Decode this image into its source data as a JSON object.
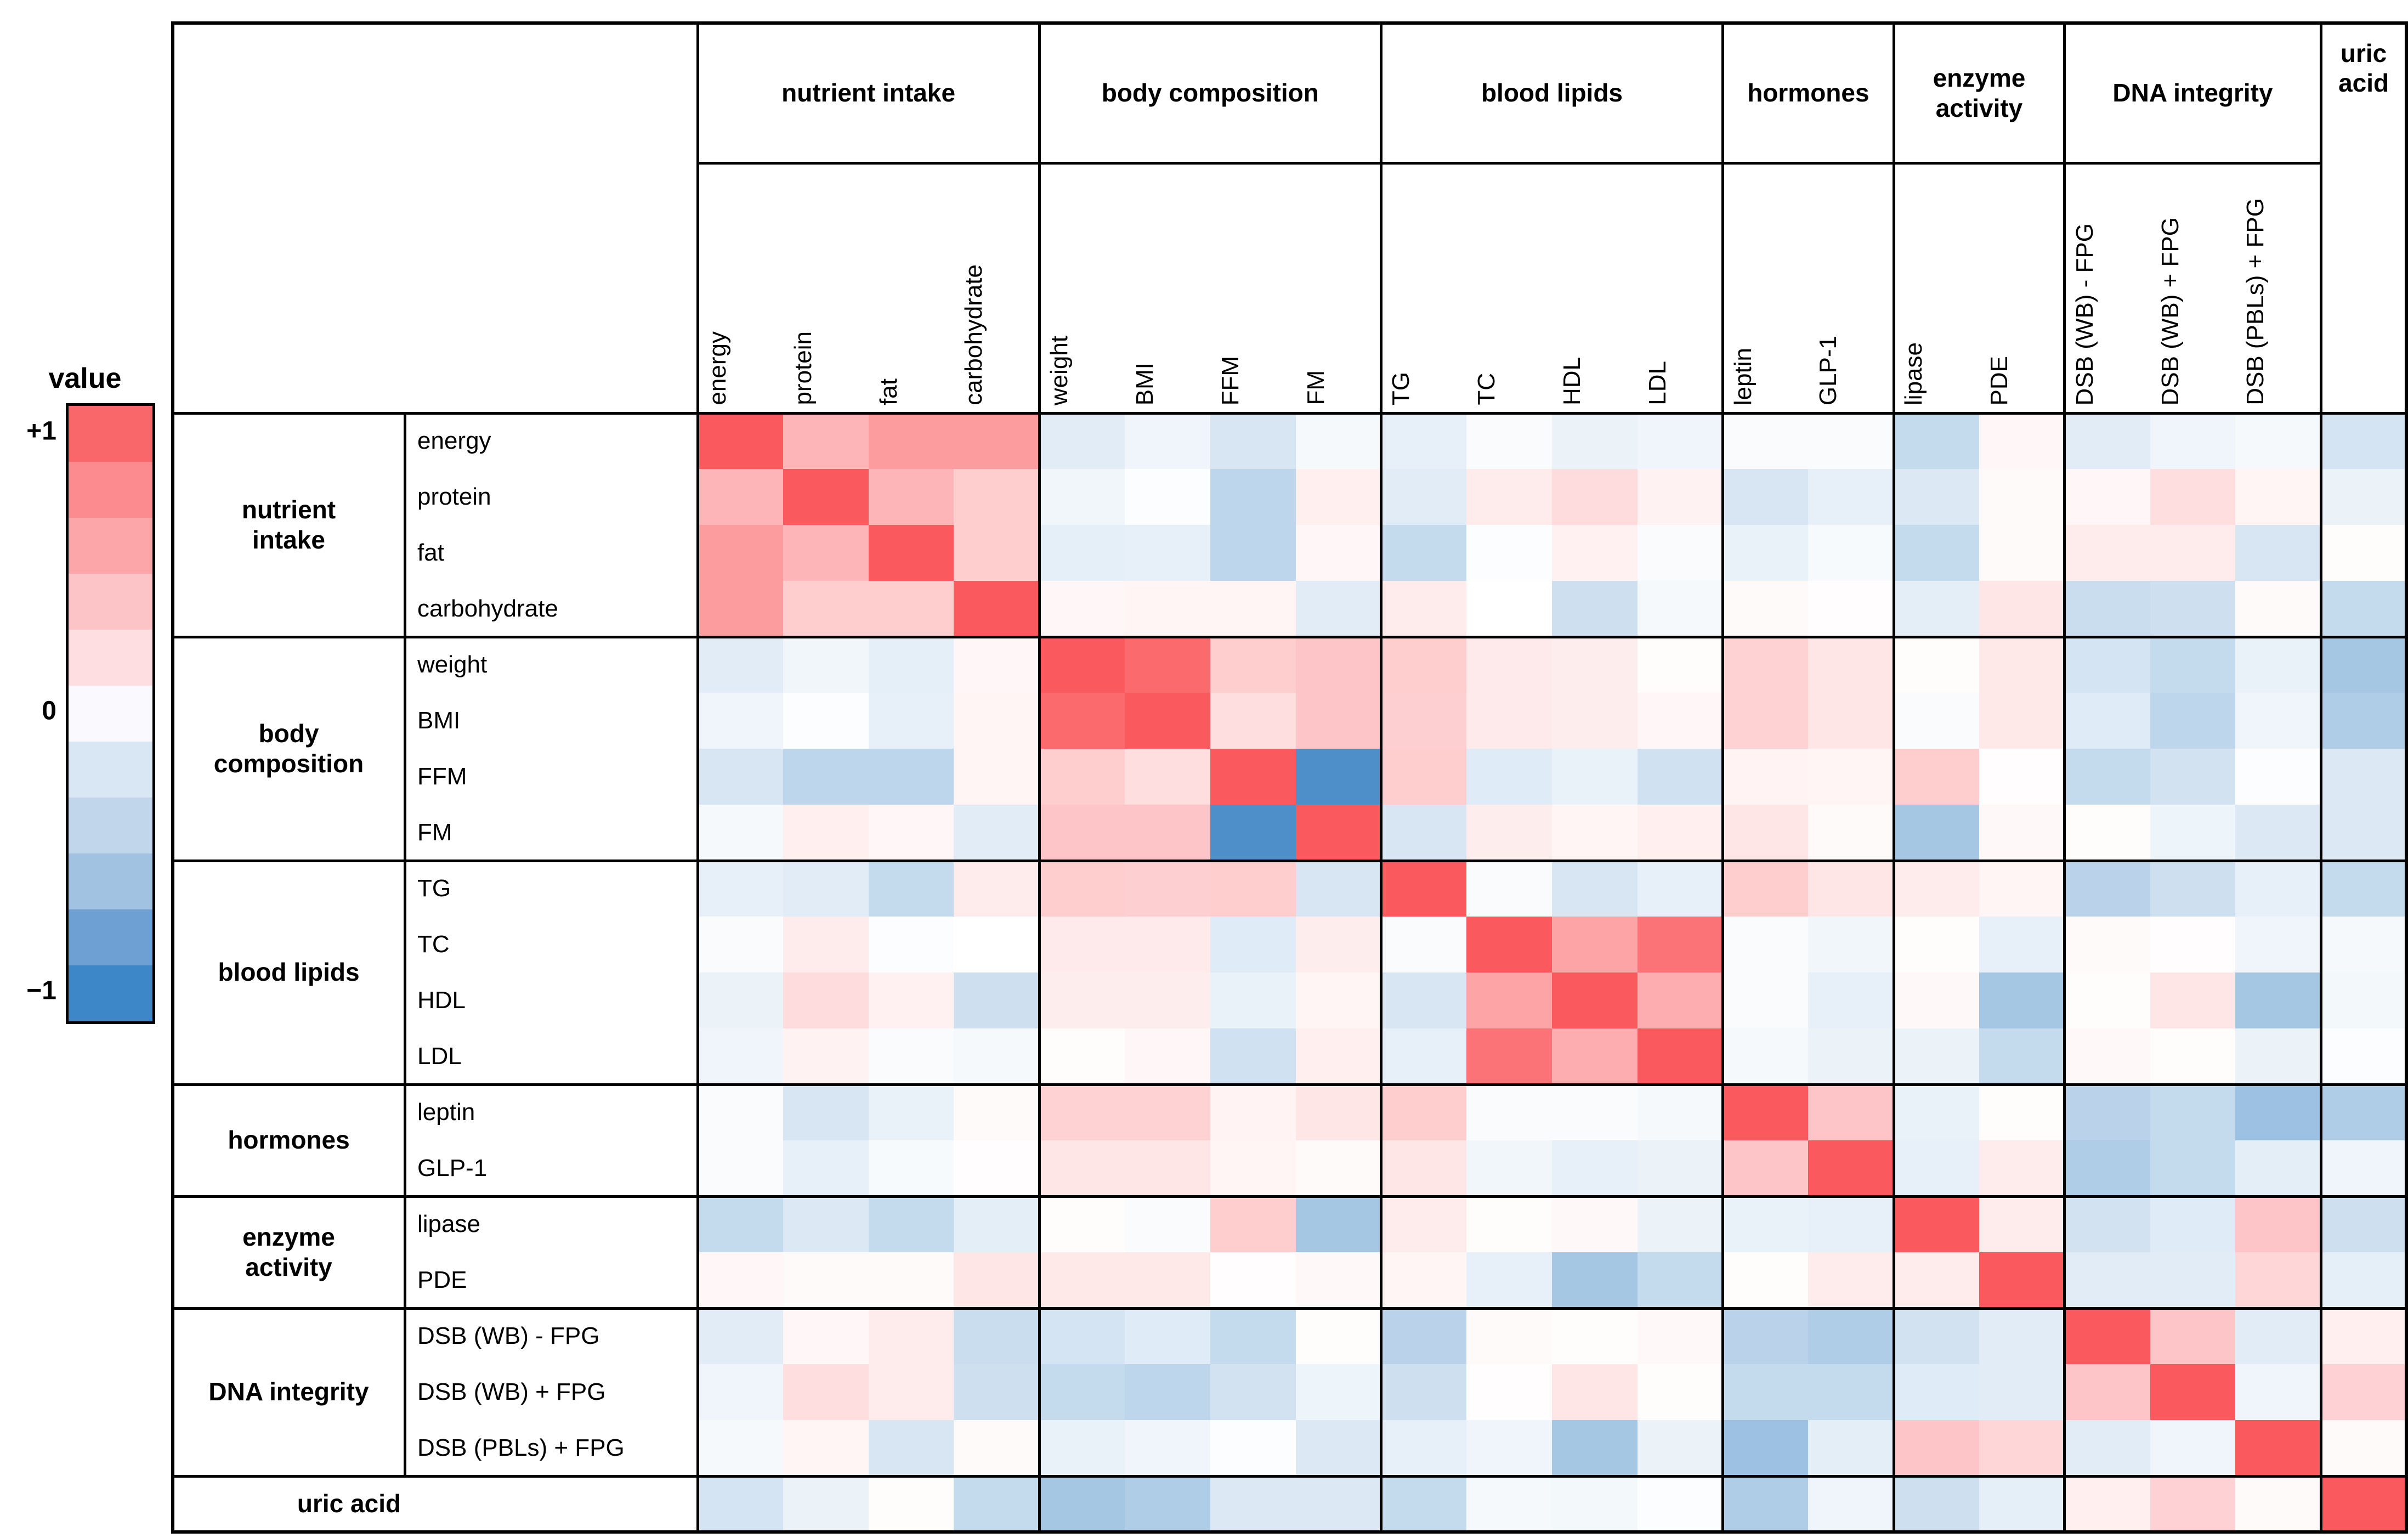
{
  "legend": {
    "title": "value",
    "ticks": [
      "+1",
      "0",
      "−1"
    ],
    "band_colors": [
      "#FA676B",
      "#FB8B8F",
      "#FCA6AA",
      "#FDC4C7",
      "#FEDEE0",
      "#FAFAFE",
      "#D9E6F3",
      "#C2D6EB",
      "#A1C3E1",
      "#6FA0D3",
      "#3D86C8"
    ]
  },
  "colors": {
    "positive_max": "#FA5A5E",
    "negative_max": "#3A82C4",
    "zero": "#FFFFFF",
    "grid": "#000000"
  },
  "chart_data": {
    "type": "heatmap",
    "title": "",
    "value_range": [
      -1,
      1
    ],
    "legend_position": "left",
    "groups": [
      {
        "name": "nutrient intake",
        "col_label": "nutrient intake",
        "row_label": "nutrient\nintake",
        "vars": [
          "energy",
          "protein",
          "fat",
          "carbohydrate"
        ]
      },
      {
        "name": "body composition",
        "col_label": "body composition",
        "row_label": "body\ncomposition",
        "vars": [
          "weight",
          "BMI",
          "FFM",
          "FM"
        ]
      },
      {
        "name": "blood lipids",
        "col_label": "blood lipids",
        "row_label": "blood lipids",
        "vars": [
          "TG",
          "TC",
          "HDL",
          "LDL"
        ]
      },
      {
        "name": "hormones",
        "col_label": "hormones",
        "row_label": "hormones",
        "vars": [
          "leptin",
          "GLP-1"
        ]
      },
      {
        "name": "enzyme activity",
        "col_label": "enzyme\nactivity",
        "row_label": "enzyme\nactivity",
        "vars": [
          "lipase",
          "PDE"
        ]
      },
      {
        "name": "DNA integrity",
        "col_label": "DNA integrity",
        "row_label": "DNA integrity",
        "vars": [
          "DSB (WB) - FPG",
          "DSB (WB) + FPG",
          "DSB (PBLs) + FPG"
        ]
      },
      {
        "name": "uric acid",
        "col_label": "uric\nacid",
        "row_label": "uric acid",
        "vars": [
          "uric acid"
        ]
      }
    ],
    "variables": [
      "energy",
      "protein",
      "fat",
      "carbohydrate",
      "weight",
      "BMI",
      "FFM",
      "FM",
      "TG",
      "TC",
      "HDL",
      "LDL",
      "leptin",
      "GLP-1",
      "lipase",
      "PDE",
      "DSB (WB) - FPG",
      "DSB (WB) + FPG",
      "DSB (PBLs) + FPG",
      "uric acid"
    ],
    "matrix": [
      [
        1.0,
        0.45,
        0.6,
        0.6,
        -0.15,
        -0.08,
        -0.2,
        -0.05,
        -0.12,
        -0.03,
        -0.1,
        -0.08,
        -0.03,
        -0.03,
        -0.3,
        0.05,
        -0.15,
        -0.08,
        -0.05,
        -0.22
      ],
      [
        0.45,
        1.0,
        0.45,
        0.3,
        -0.07,
        -0.02,
        -0.33,
        0.1,
        -0.15,
        0.12,
        0.22,
        0.08,
        -0.2,
        -0.12,
        -0.18,
        0.03,
        0.05,
        0.2,
        0.06,
        -0.1
      ],
      [
        0.6,
        0.45,
        1.0,
        0.3,
        -0.13,
        -0.12,
        -0.33,
        0.05,
        -0.3,
        -0.02,
        0.09,
        -0.03,
        -0.11,
        -0.04,
        -0.3,
        0.03,
        0.12,
        0.12,
        -0.2,
        0.02
      ],
      [
        0.6,
        0.3,
        0.3,
        1.0,
        0.05,
        0.06,
        0.06,
        -0.15,
        0.12,
        0.0,
        -0.25,
        -0.05,
        0.03,
        0.01,
        -0.14,
        0.15,
        -0.27,
        -0.25,
        0.03,
        -0.3
      ],
      [
        -0.15,
        -0.07,
        -0.13,
        0.05,
        1.0,
        0.9,
        0.3,
        0.35,
        0.3,
        0.13,
        0.11,
        0.02,
        0.28,
        0.15,
        0.02,
        0.14,
        -0.22,
        -0.3,
        -0.11,
        -0.45
      ],
      [
        -0.08,
        -0.02,
        -0.12,
        0.06,
        0.9,
        1.0,
        0.2,
        0.35,
        0.29,
        0.13,
        0.11,
        0.05,
        0.28,
        0.15,
        -0.03,
        0.14,
        -0.16,
        -0.33,
        -0.08,
        -0.4
      ],
      [
        -0.2,
        -0.33,
        -0.33,
        0.06,
        0.3,
        0.2,
        1.0,
        -0.9,
        0.3,
        -0.16,
        -0.11,
        -0.24,
        0.07,
        0.06,
        0.3,
        0.01,
        -0.3,
        -0.23,
        -0.02,
        -0.18
      ],
      [
        -0.05,
        0.1,
        0.05,
        -0.15,
        0.35,
        0.35,
        -0.9,
        1.0,
        -0.2,
        0.11,
        0.06,
        0.1,
        0.15,
        0.03,
        -0.45,
        0.04,
        0.02,
        -0.09,
        -0.18,
        -0.18
      ],
      [
        -0.12,
        -0.15,
        -0.3,
        0.12,
        0.3,
        0.29,
        0.3,
        -0.2,
        1.0,
        -0.03,
        -0.2,
        -0.12,
        0.3,
        0.15,
        0.12,
        0.06,
        -0.35,
        -0.25,
        -0.12,
        -0.3
      ],
      [
        -0.03,
        0.12,
        -0.02,
        0.0,
        0.13,
        0.13,
        -0.16,
        0.11,
        -0.03,
        1.0,
        0.55,
        0.85,
        -0.03,
        -0.07,
        0.02,
        -0.12,
        0.03,
        0.01,
        -0.08,
        -0.05
      ],
      [
        -0.1,
        0.22,
        0.09,
        -0.25,
        0.11,
        0.11,
        -0.11,
        0.06,
        -0.2,
        0.55,
        1.0,
        0.5,
        -0.03,
        -0.12,
        0.04,
        -0.45,
        0.02,
        0.15,
        -0.45,
        -0.06
      ],
      [
        -0.08,
        0.08,
        -0.03,
        -0.05,
        0.02,
        0.05,
        -0.24,
        0.1,
        -0.12,
        0.85,
        0.5,
        1.0,
        -0.05,
        -0.1,
        -0.1,
        -0.3,
        0.04,
        0.02,
        -0.1,
        -0.02
      ],
      [
        -0.03,
        -0.2,
        -0.11,
        0.03,
        0.28,
        0.28,
        0.07,
        0.15,
        0.3,
        -0.03,
        -0.03,
        -0.05,
        1.0,
        0.35,
        -0.11,
        0.02,
        -0.35,
        -0.3,
        -0.5,
        -0.4
      ],
      [
        -0.03,
        -0.12,
        -0.04,
        0.01,
        0.15,
        0.15,
        0.06,
        0.03,
        0.15,
        -0.07,
        -0.12,
        -0.1,
        0.35,
        1.0,
        -0.12,
        0.12,
        -0.4,
        -0.3,
        -0.14,
        -0.08
      ],
      [
        -0.3,
        -0.18,
        -0.3,
        -0.14,
        0.02,
        -0.03,
        0.3,
        -0.45,
        0.12,
        0.02,
        0.04,
        -0.1,
        -0.11,
        -0.12,
        1.0,
        0.12,
        -0.23,
        -0.16,
        0.35,
        -0.25
      ],
      [
        0.05,
        0.03,
        0.03,
        0.15,
        0.14,
        0.14,
        0.01,
        0.04,
        0.06,
        -0.12,
        -0.45,
        -0.3,
        0.02,
        0.12,
        0.12,
        1.0,
        -0.15,
        -0.15,
        0.25,
        -0.13
      ],
      [
        -0.15,
        0.05,
        0.12,
        -0.27,
        -0.22,
        -0.16,
        -0.3,
        0.02,
        -0.35,
        0.03,
        0.02,
        0.04,
        -0.35,
        -0.4,
        -0.23,
        -0.15,
        1.0,
        0.35,
        -0.15,
        0.1
      ],
      [
        -0.08,
        0.2,
        0.12,
        -0.25,
        -0.3,
        -0.33,
        -0.23,
        -0.09,
        -0.25,
        0.01,
        0.15,
        0.02,
        -0.3,
        -0.3,
        -0.16,
        -0.15,
        0.35,
        1.0,
        -0.08,
        0.27
      ],
      [
        -0.05,
        0.06,
        -0.2,
        0.03,
        -0.11,
        -0.08,
        -0.02,
        -0.18,
        -0.12,
        -0.08,
        -0.45,
        -0.1,
        -0.5,
        -0.14,
        0.35,
        0.25,
        -0.15,
        -0.08,
        1.0,
        0.03
      ],
      [
        -0.22,
        -0.1,
        0.02,
        -0.3,
        -0.45,
        -0.4,
        -0.18,
        -0.18,
        -0.3,
        -0.05,
        -0.06,
        -0.02,
        -0.4,
        -0.08,
        -0.25,
        -0.13,
        0.1,
        0.27,
        0.03,
        1.0
      ]
    ]
  }
}
